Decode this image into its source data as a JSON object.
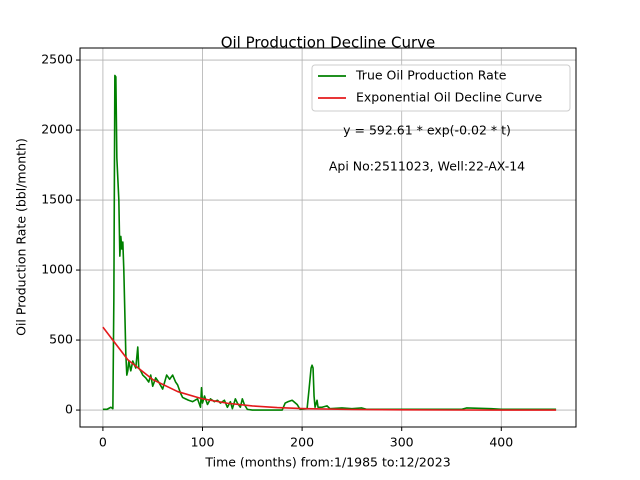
{
  "chart_data": {
    "type": "line",
    "title": "Oil Production Decline Curve",
    "xlabel": "Time (months) from:1/1985 to:12/2023",
    "ylabel": "Oil Production Rate (bbl/month)",
    "annotations": [
      "y = 592.61 * exp(-0.02 * t)",
      "Api No:2511023, Well:22-AX-14"
    ],
    "xlim": [
      -23,
      475
    ],
    "ylim": [
      -121,
      2586
    ],
    "xticks": [
      0,
      100,
      200,
      300,
      400
    ],
    "yticks": [
      0,
      500,
      1000,
      1500,
      2000,
      2500
    ],
    "grid": true,
    "legend": "upper right",
    "series": [
      {
        "name": "True Oil Production Rate",
        "color": "#008000",
        "x": [
          0,
          4,
          8,
          10,
          11,
          12,
          13,
          14,
          16,
          17,
          18,
          19,
          20,
          21,
          22,
          23,
          24,
          25,
          26,
          28,
          30,
          33,
          35,
          36,
          38,
          40,
          43,
          46,
          48,
          50,
          53,
          56,
          60,
          64,
          67,
          70,
          73,
          75,
          78,
          80,
          83,
          86,
          90,
          95,
          98,
          99,
          100,
          102,
          105,
          108,
          112,
          115,
          118,
          122,
          125,
          128,
          130,
          133,
          135,
          138,
          140,
          142,
          145,
          150,
          180,
          183,
          186,
          190,
          195,
          198,
          205,
          207,
          209,
          210,
          211,
          212,
          213,
          215,
          216,
          220,
          225,
          228,
          240,
          250,
          260,
          265,
          300,
          360,
          365,
          390,
          400,
          455
        ],
        "values": [
          5,
          5,
          20,
          10,
          800,
          2390,
          2380,
          1800,
          1500,
          1100,
          1240,
          1150,
          1200,
          1000,
          700,
          400,
          250,
          280,
          350,
          280,
          350,
          300,
          450,
          300,
          280,
          250,
          230,
          200,
          250,
          170,
          230,
          200,
          150,
          250,
          220,
          250,
          200,
          180,
          120,
          90,
          80,
          70,
          60,
          80,
          20,
          160,
          50,
          100,
          40,
          80,
          60,
          70,
          50,
          70,
          20,
          60,
          10,
          80,
          50,
          20,
          80,
          40,
          5,
          0,
          0,
          50,
          60,
          70,
          40,
          5,
          10,
          150,
          300,
          320,
          300,
          100,
          20,
          70,
          20,
          20,
          30,
          10,
          15,
          10,
          15,
          5,
          5,
          5,
          15,
          10,
          5,
          5
        ]
      },
      {
        "name": "Exponential Oil Decline Curve",
        "color": "#e41a1c",
        "x": [
          0,
          25,
          50,
          75,
          100,
          125,
          150,
          175,
          200,
          250,
          300,
          350,
          400,
          455
        ],
        "values": [
          592.6,
          359.4,
          218.0,
          132.2,
          80.2,
          48.6,
          29.5,
          17.9,
          10.9,
          4.0,
          1.5,
          0.5,
          0.2,
          0.1
        ]
      }
    ]
  }
}
